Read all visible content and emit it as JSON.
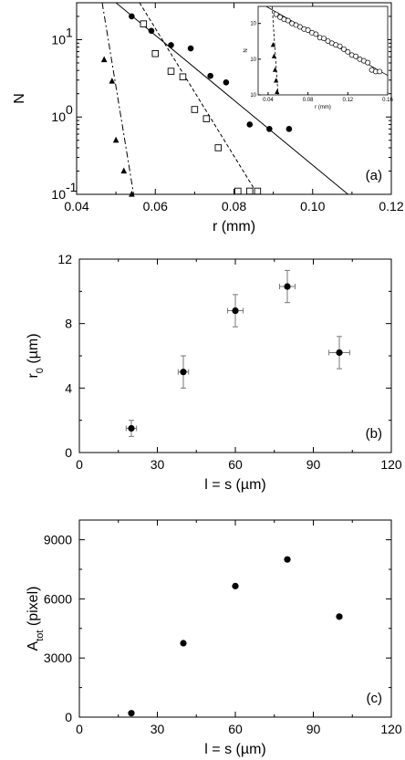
{
  "chart_data": [
    {
      "type": "scatter",
      "panel_label": "(a)",
      "xlabel": "r (mm)",
      "ylabel": "N",
      "xlim": [
        0.04,
        0.12
      ],
      "ylim": [
        0.1,
        30
      ],
      "y_scale": "log",
      "x_ticks": [
        0.04,
        0.06,
        0.08,
        0.1,
        0.12
      ],
      "x_tick_labels": [
        "0.04",
        "0.06",
        "0.08",
        "0.10",
        "0.12"
      ],
      "y_ticks": [
        0.1,
        1,
        10
      ],
      "y_tick_labels": [
        "10",
        "10",
        "10"
      ],
      "y_tick_exponents": [
        "-1",
        "0",
        "1"
      ],
      "series": [
        {
          "marker": "circle-filled",
          "x": [
            0.054,
            0.059,
            0.064,
            0.069,
            0.074,
            0.078,
            0.084,
            0.089,
            0.094
          ],
          "y": [
            20,
            13,
            8.5,
            7.7,
            3.4,
            2.8,
            0.8,
            0.7,
            0.7
          ]
        },
        {
          "marker": "square-open",
          "x": [
            0.057,
            0.06,
            0.064,
            0.067,
            0.07,
            0.073,
            0.076,
            0.081,
            0.084,
            0.086
          ],
          "y": [
            16,
            6.6,
            3.9,
            3.3,
            1.25,
            0.95,
            0.4,
            0.11,
            0.11,
            0.11
          ]
        },
        {
          "marker": "triangle-filled",
          "x": [
            0.047,
            0.049,
            0.05,
            0.052,
            0.054
          ],
          "y": [
            5.5,
            2.9,
            0.5,
            0.2,
            0.1
          ]
        }
      ],
      "fits": [
        {
          "style": "solid",
          "x": [
            0.05,
            0.109
          ],
          "y": [
            30,
            0.1
          ]
        },
        {
          "style": "dashed",
          "x": [
            0.056,
            0.086
          ],
          "y": [
            30,
            0.1
          ]
        },
        {
          "style": "dashdot",
          "x": [
            0.0465,
            0.0545
          ],
          "y": [
            30,
            0.1
          ]
        }
      ],
      "inset": {
        "xlabel": "r (mm)",
        "ylabel": "N",
        "xlim": [
          0.03,
          0.16
        ],
        "ylim": [
          0.1,
          30
        ],
        "x_tick_labels": [
          "0.04",
          "0.08",
          "0.12",
          "0.16"
        ],
        "x_ticks": [
          0.04,
          0.08,
          0.12,
          0.16
        ],
        "y_ticks": [
          0.1,
          1,
          10
        ],
        "y_tick_labels": [
          "10",
          "10",
          "10"
        ],
        "series": [
          {
            "marker": "circle-open",
            "x": [
              0.048,
              0.052,
              0.056,
              0.06,
              0.064,
              0.068,
              0.072,
              0.076,
              0.08,
              0.084,
              0.088,
              0.092,
              0.096,
              0.1,
              0.104,
              0.108,
              0.112,
              0.116,
              0.12,
              0.124,
              0.128,
              0.132,
              0.136,
              0.14,
              0.144,
              0.148,
              0.152
            ],
            "y": [
              18,
              15,
              13,
              12,
              10,
              9,
              8,
              7,
              6.5,
              5.5,
              5,
              4,
              3.8,
              3.2,
              2.8,
              2.5,
              2.3,
              1.9,
              1.6,
              1.3,
              1.2,
              1.0,
              0.9,
              0.8,
              0.5,
              0.45,
              0.45
            ]
          },
          {
            "marker": "triangle-filled",
            "x": [
              0.045,
              0.046,
              0.047,
              0.048,
              0.049
            ],
            "y": [
              2.5,
              1.2,
              0.5,
              0.25,
              0.12
            ]
          }
        ],
        "fits": [
          {
            "style": "solid",
            "x": [
              0.038,
              0.16
            ],
            "y": [
              30,
              0.35
            ]
          },
          {
            "style": "dashed",
            "x": [
              0.044,
              0.05
            ],
            "y": [
              30,
              0.1
            ]
          }
        ]
      }
    },
    {
      "type": "scatter",
      "panel_label": "(b)",
      "xlabel": "l = s (µm)",
      "ylabel": "r",
      "ylabel_sub": "0",
      "ylabel_unit": " (µm)",
      "xlim": [
        0,
        120
      ],
      "ylim": [
        0,
        12
      ],
      "x_ticks": [
        0,
        30,
        60,
        90,
        120
      ],
      "x_tick_labels": [
        "0",
        "30",
        "60",
        "90",
        "120"
      ],
      "y_ticks": [
        0,
        4,
        8,
        12
      ],
      "y_tick_labels": [
        "0",
        "4",
        "8",
        "12"
      ],
      "series": [
        {
          "marker": "circle-filled",
          "x": [
            20,
            40,
            60,
            80,
            100
          ],
          "y": [
            1.5,
            5.0,
            8.8,
            10.3,
            6.2
          ],
          "xerr": [
            2,
            2,
            3,
            3,
            4
          ],
          "yerr": [
            0.5,
            1.0,
            1.0,
            1.0,
            1.0
          ]
        }
      ]
    },
    {
      "type": "scatter",
      "panel_label": "(c)",
      "xlabel": "l = s (µm)",
      "ylabel": "A",
      "ylabel_sub": "tot",
      "ylabel_unit": " (pixel)",
      "xlim": [
        0,
        120
      ],
      "ylim": [
        0,
        10000
      ],
      "x_ticks": [
        0,
        30,
        60,
        90,
        120
      ],
      "x_tick_labels": [
        "0",
        "30",
        "60",
        "90",
        "120"
      ],
      "y_ticks": [
        0,
        3000,
        6000,
        9000
      ],
      "y_tick_labels": [
        "0",
        "3000",
        "6000",
        "9000"
      ],
      "series": [
        {
          "marker": "circle-filled",
          "x": [
            20,
            40,
            60,
            80,
            100
          ],
          "y": [
            200,
            3750,
            6650,
            8000,
            5100
          ]
        }
      ]
    }
  ]
}
